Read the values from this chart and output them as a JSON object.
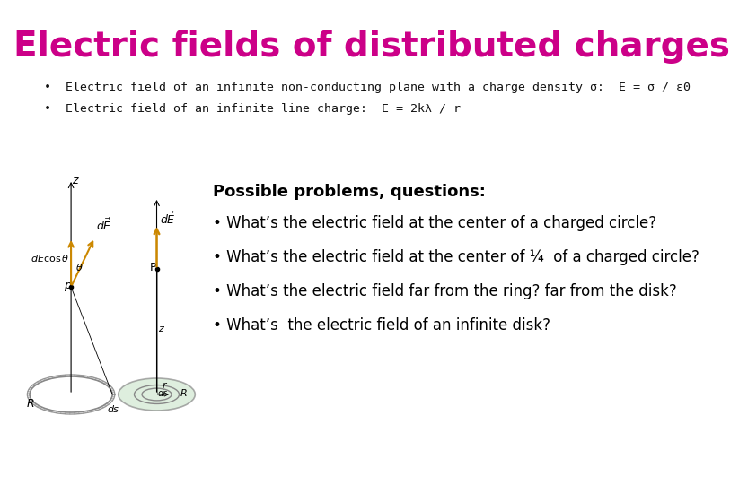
{
  "title": "Electric fields of distributed charges",
  "title_color": "#CC0088",
  "title_fontsize": 28,
  "title_bold": true,
  "bg_color": "#ffffff",
  "bullet1_text": "Electric field of an infinite non-conducting plane with a charge density σ:  E = σ / ε₀",
  "bullet2_text": "Electric field of an infinite line charge:  E = 2kλ / r",
  "possible_header": "Possible problems, questions:",
  "questions": [
    "• What’s the electric field at the center of a charged circle?",
    "• What’s the electric field at the center of ¼  of a charged circle?",
    "• What’s the electric field far from the ring? far from the disk?",
    "• What’s  the electric field of an infinite disk?"
  ],
  "image_placeholder_color": "#f0f0f0",
  "text_color": "#000000",
  "header_fontsize": 13,
  "body_fontsize": 12
}
